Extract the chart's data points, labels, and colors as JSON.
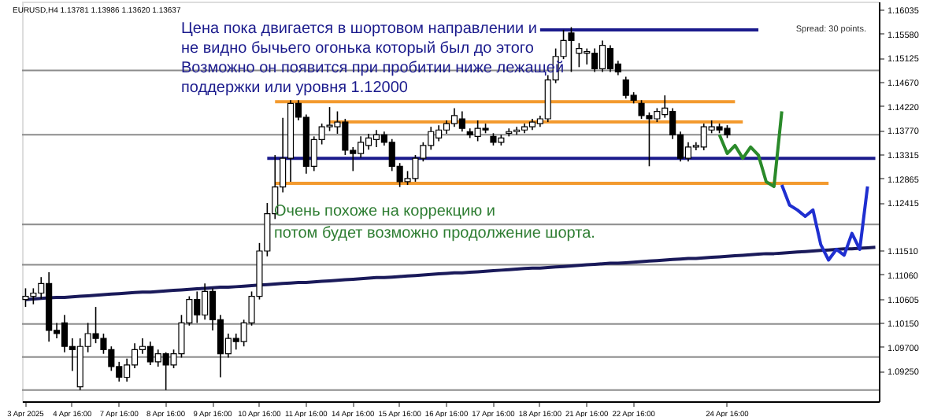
{
  "chart_data": {
    "type": "candlestick",
    "title": "EURUSD,H4 1.13781 1.13986 1.13620 1.13637",
    "categories": [
      "3 Apr 2025",
      null,
      null,
      null,
      null,
      null,
      "4 Apr 16:00",
      null,
      null,
      null,
      null,
      null,
      "7 Apr 16:00",
      null,
      null,
      null,
      null,
      null,
      "8 Apr 16:00",
      null,
      null,
      null,
      null,
      null,
      "9 Apr 16:00",
      null,
      null,
      null,
      null,
      null,
      "10 Apr 16:00",
      null,
      null,
      null,
      null,
      null,
      "11 Apr 16:00",
      null,
      null,
      null,
      null,
      null,
      "14 Apr 16:00",
      null,
      null,
      null,
      null,
      null,
      "15 Apr 16:00",
      null,
      null,
      null,
      null,
      null,
      "16 Apr 16:00",
      null,
      null,
      null,
      null,
      null,
      "17 Apr 16:00",
      null,
      null,
      null,
      null,
      null,
      "18 Apr 16:00",
      null,
      null,
      null,
      null,
      null,
      "21 Apr 16:00",
      null,
      null,
      null,
      null,
      null,
      "22 Apr 16:00",
      null,
      null,
      null,
      null,
      null,
      null,
      null,
      null,
      null,
      null,
      null,
      "24 Apr 16:00",
      null,
      null,
      null,
      null,
      null,
      null,
      null,
      null,
      null,
      null,
      null,
      null,
      null,
      null,
      null,
      null,
      null,
      null,
      null
    ],
    "ohlc": [
      [
        1.1059,
        1.108,
        1.1045,
        1.1065
      ],
      [
        1.1065,
        1.108,
        1.105,
        1.1071
      ],
      [
        1.1071,
        1.1101,
        1.106,
        1.1089
      ],
      [
        1.1089,
        1.111,
        1.098,
        1.1001
      ],
      [
        1.1001,
        1.1015,
        1.0986,
        1.0995
      ],
      [
        1.1015,
        1.103,
        1.096,
        1.0971
      ],
      [
        1.0971,
        1.0986,
        1.0925,
        1.0965
      ],
      [
        1.0895,
        1.0986,
        1.0889,
        1.0971
      ],
      [
        1.0971,
        1.1015,
        1.096,
        1.0995
      ],
      [
        1.0995,
        1.1045,
        1.0977,
        1.0986
      ],
      [
        1.0986,
        1.0995,
        1.0957,
        1.0965
      ],
      [
        1.0965,
        1.0971,
        1.0925,
        1.0933
      ],
      [
        1.0933,
        1.0942,
        1.0905,
        1.0913
      ],
      [
        1.0913,
        1.0948,
        1.0905,
        1.0936
      ],
      [
        1.0936,
        1.0977,
        1.093,
        1.0965
      ],
      [
        1.0965,
        1.0986,
        1.0957,
        1.0971
      ],
      [
        1.0971,
        1.098,
        1.0936,
        1.0942
      ],
      [
        1.0942,
        1.0965,
        1.0933,
        1.0957
      ],
      [
        1.0957,
        1.096,
        1.0889,
        1.0936
      ],
      [
        1.0936,
        1.0965,
        1.093,
        1.0957
      ],
      [
        1.0957,
        1.103,
        1.095,
        1.1015
      ],
      [
        1.1015,
        1.1065,
        1.101,
        1.1059
      ],
      [
        1.1059,
        1.1074,
        1.1015,
        1.103
      ],
      [
        1.103,
        1.1089,
        1.1021,
        1.1074
      ],
      [
        1.1074,
        1.108,
        1.1001,
        1.1021
      ],
      [
        1.1021,
        1.103,
        1.0913,
        1.0957
      ],
      [
        1.0957,
        1.0995,
        1.095,
        1.0986
      ],
      [
        1.0986,
        1.0995,
        1.0965,
        1.098
      ],
      [
        1.098,
        1.1021,
        1.0971,
        1.1015
      ],
      [
        1.1015,
        1.1074,
        1.101,
        1.1065
      ],
      [
        1.1065,
        1.1165,
        1.1059,
        1.115
      ],
      [
        1.115,
        1.124,
        1.114,
        1.122
      ],
      [
        1.122,
        1.133,
        1.121,
        1.127
      ],
      [
        1.127,
        1.14,
        1.126,
        1.1324
      ],
      [
        1.1324,
        1.1433,
        1.128,
        1.1427
      ],
      [
        1.1427,
        1.1433,
        1.1395,
        1.1401
      ],
      [
        1.1401,
        1.1406,
        1.1295,
        1.1309
      ],
      [
        1.1309,
        1.1365,
        1.13,
        1.1359
      ],
      [
        1.1359,
        1.1389,
        1.135,
        1.1383
      ],
      [
        1.1383,
        1.142,
        1.1375,
        1.1386
      ],
      [
        1.1383,
        1.1412,
        1.137,
        1.1392
      ],
      [
        1.1392,
        1.1398,
        1.133,
        1.1339
      ],
      [
        1.1339,
        1.1345,
        1.13,
        1.1333
      ],
      [
        1.1333,
        1.1365,
        1.1325,
        1.1354
      ],
      [
        1.1348,
        1.137,
        1.134,
        1.1362
      ],
      [
        1.1359,
        1.1377,
        1.1345,
        1.1368
      ],
      [
        1.1368,
        1.1374,
        1.1348,
        1.1354
      ],
      [
        1.1354,
        1.136,
        1.13,
        1.1309
      ],
      [
        1.1309,
        1.1315,
        1.127,
        1.128
      ],
      [
        1.128,
        1.13,
        1.1274,
        1.1286
      ],
      [
        1.1286,
        1.133,
        1.128,
        1.1324
      ],
      [
        1.1324,
        1.1354,
        1.1318,
        1.1348
      ],
      [
        1.1348,
        1.1383,
        1.134,
        1.1374
      ],
      [
        1.1362,
        1.1386,
        1.1356,
        1.1377
      ],
      [
        1.1377,
        1.1395,
        1.137,
        1.1389
      ],
      [
        1.1389,
        1.1418,
        1.1383,
        1.1404
      ],
      [
        1.1398,
        1.1412,
        1.1374,
        1.138
      ],
      [
        1.1374,
        1.138,
        1.1362,
        1.1368
      ],
      [
        1.1365,
        1.1395,
        1.1356,
        1.138
      ],
      [
        1.138,
        1.1389,
        1.1371,
        1.1377
      ],
      [
        1.1365,
        1.1371,
        1.1348,
        1.1354
      ],
      [
        1.1354,
        1.1368,
        1.1348,
        1.1362
      ],
      [
        1.1371,
        1.138,
        1.1365,
        1.1374
      ],
      [
        1.1374,
        1.1383,
        1.1368,
        1.1377
      ],
      [
        1.1377,
        1.1389,
        1.1371,
        1.1383
      ],
      [
        1.1383,
        1.1398,
        1.1377,
        1.1392
      ],
      [
        1.1389,
        1.1404,
        1.1383,
        1.1398
      ],
      [
        1.1398,
        1.148,
        1.1392,
        1.1471
      ],
      [
        1.1471,
        1.153,
        1.1465,
        1.1515
      ],
      [
        1.1515,
        1.1565,
        1.151,
        1.1545
      ],
      [
        1.1559,
        1.157,
        1.1486,
        1.1545
      ],
      [
        1.1521,
        1.154,
        1.1495,
        1.153
      ],
      [
        1.1521,
        1.153,
        1.15,
        1.1524
      ],
      [
        1.1521,
        1.153,
        1.1486,
        1.1492
      ],
      [
        1.1492,
        1.1545,
        1.1486,
        1.1536
      ],
      [
        1.153,
        1.1536,
        1.1486,
        1.1492
      ],
      [
        1.1501,
        1.1507,
        1.148,
        1.1486
      ],
      [
        1.1471,
        1.1477,
        1.1436,
        1.1442
      ],
      [
        1.1442,
        1.1448,
        1.1427,
        1.1433
      ],
      [
        1.1427,
        1.1433,
        1.1398,
        1.1404
      ],
      [
        1.1404,
        1.141,
        1.1309,
        1.1398
      ],
      [
        1.1398,
        1.1418,
        1.1392,
        1.1412
      ],
      [
        1.1406,
        1.1442,
        1.14,
        1.1418
      ],
      [
        1.1412,
        1.1418,
        1.136,
        1.1368
      ],
      [
        1.1368,
        1.1374,
        1.1318,
        1.1324
      ],
      [
        1.1324,
        1.1354,
        1.1318,
        1.1345
      ],
      [
        1.1345,
        1.1354,
        1.1339,
        1.1348
      ],
      [
        1.1345,
        1.1389,
        1.1339,
        1.1383
      ],
      [
        1.1377,
        1.1395,
        1.1371,
        1.1383
      ],
      [
        1.1383,
        1.1389,
        1.1371,
        1.1377
      ],
      [
        1.138,
        1.1386,
        1.1362,
        1.1368
      ],
      null,
      null,
      null,
      null,
      null,
      null,
      null,
      null,
      null,
      null,
      null,
      null,
      null,
      null,
      null,
      null,
      null,
      null,
      null
    ],
    "series": [
      {
        "type": "line",
        "color": "#f39a2e",
        "values": [
          null,
          null,
          null,
          null,
          null,
          null,
          null,
          null,
          null,
          null,
          null,
          null,
          null,
          null,
          null,
          null,
          null,
          null,
          null,
          null,
          null,
          null,
          null,
          null,
          null,
          null,
          null,
          null,
          null,
          null,
          null,
          null,
          1.143,
          1.143,
          1.143,
          1.143,
          1.143,
          1.143,
          1.143,
          1.143,
          1.143,
          1.143,
          1.143,
          1.143,
          1.143,
          1.143,
          1.143,
          1.143,
          1.143,
          1.143,
          1.143,
          1.143,
          1.143,
          1.143,
          1.143,
          1.143,
          1.143,
          1.143,
          1.143,
          1.143,
          1.143,
          1.143,
          1.143,
          1.143,
          1.143,
          1.143,
          1.143,
          1.143,
          1.143,
          1.143,
          1.143,
          1.143,
          1.143,
          1.143,
          1.143,
          1.143,
          1.143,
          1.143,
          1.143,
          1.143,
          1.143,
          1.143,
          1.143,
          1.143,
          1.143,
          1.143,
          1.143,
          1.143,
          1.143,
          1.143,
          1.143,
          1.143,
          null,
          null,
          null,
          null,
          null,
          null,
          null,
          null,
          null,
          null,
          null,
          null,
          null,
          null,
          null,
          null,
          null,
          null
        ]
      },
      {
        "type": "line",
        "color": "#f39a2e",
        "values": [
          null,
          null,
          null,
          null,
          null,
          null,
          null,
          null,
          null,
          null,
          null,
          null,
          null,
          null,
          null,
          null,
          null,
          null,
          null,
          null,
          null,
          null,
          null,
          null,
          null,
          null,
          null,
          null,
          null,
          null,
          null,
          null,
          null,
          null,
          null,
          null,
          null,
          null,
          null,
          1.1392,
          1.1392,
          1.1392,
          1.1392,
          1.1392,
          1.1392,
          1.1392,
          1.1392,
          1.1392,
          1.1392,
          1.1392,
          1.1392,
          1.1392,
          1.1392,
          1.1392,
          1.1392,
          1.1392,
          1.1392,
          1.1392,
          1.1392,
          1.1392,
          1.1392,
          1.1392,
          1.1392,
          1.1392,
          1.1392,
          1.1392,
          1.1392,
          1.1392,
          1.1392,
          1.1392,
          1.1392,
          1.1392,
          1.1392,
          1.1392,
          1.1392,
          1.1392,
          1.1392,
          1.1392,
          1.1392,
          1.1392,
          1.1392,
          1.1392,
          1.1392,
          1.1392,
          1.1392,
          1.1392,
          1.1392,
          1.1392,
          1.1392,
          1.1392,
          1.1392,
          1.1392,
          1.1392,
          null,
          null,
          null,
          null,
          null,
          null,
          null,
          null,
          null,
          null,
          null,
          null,
          null,
          null,
          null,
          null,
          null
        ]
      },
      {
        "type": "line",
        "color": "#f39a2e",
        "values": [
          null,
          null,
          null,
          null,
          null,
          null,
          null,
          null,
          null,
          null,
          null,
          null,
          null,
          null,
          null,
          null,
          null,
          null,
          null,
          null,
          null,
          null,
          null,
          null,
          null,
          null,
          null,
          null,
          null,
          null,
          null,
          null,
          1.1277,
          1.1277,
          1.1277,
          1.1277,
          1.1277,
          1.1277,
          1.1277,
          1.1277,
          1.1277,
          1.1277,
          1.1277,
          1.1277,
          1.1277,
          1.1277,
          1.1277,
          1.1277,
          1.1277,
          1.1277,
          1.1277,
          1.1277,
          1.1277,
          1.1277,
          1.1277,
          1.1277,
          1.1277,
          1.1277,
          1.1277,
          1.1277,
          1.1277,
          1.1277,
          1.1277,
          1.1277,
          1.1277,
          1.1277,
          1.1277,
          1.1277,
          1.1277,
          1.1277,
          1.1277,
          1.1277,
          1.1277,
          1.1277,
          1.1277,
          1.1277,
          1.1277,
          1.1277,
          1.1277,
          1.1277,
          1.1277,
          1.1277,
          1.1277,
          1.1277,
          1.1277,
          1.1277,
          1.1277,
          1.1277,
          1.1277,
          1.1277,
          1.1277,
          1.1277,
          1.1277,
          1.1277,
          1.1277,
          1.1277,
          1.1277,
          1.1277,
          1.1277,
          1.1277,
          1.1277,
          1.1277,
          1.1277,
          1.1277,
          null,
          null,
          null,
          null,
          null,
          null
        ]
      },
      {
        "type": "line",
        "color": "#1a1a8c",
        "values": [
          null,
          null,
          null,
          null,
          null,
          null,
          null,
          null,
          null,
          null,
          null,
          null,
          null,
          null,
          null,
          null,
          null,
          null,
          null,
          null,
          null,
          null,
          null,
          null,
          null,
          null,
          null,
          null,
          null,
          null,
          null,
          null,
          null,
          null,
          null,
          null,
          null,
          null,
          null,
          null,
          null,
          null,
          null,
          null,
          null,
          null,
          null,
          null,
          null,
          null,
          null,
          null,
          null,
          null,
          null,
          null,
          null,
          null,
          null,
          null,
          null,
          null,
          null,
          null,
          null,
          null,
          1.1565,
          1.1565,
          1.1565,
          1.1565,
          1.1565,
          1.1565,
          1.1565,
          1.1565,
          1.1565,
          1.1565,
          1.1565,
          1.1565,
          1.1565,
          1.1565,
          1.1565,
          1.1565,
          1.1565,
          1.1565,
          1.1565,
          1.1565,
          1.1565,
          1.1565,
          1.1565,
          1.1565,
          1.1565,
          1.1565,
          1.1565,
          1.1565,
          1.1565,
          null,
          null,
          null,
          null,
          null,
          null,
          null,
          null,
          null,
          null,
          null,
          null,
          null,
          null,
          null
        ]
      },
      {
        "type": "line",
        "color": "#1a1a8c",
        "values": [
          null,
          null,
          null,
          null,
          null,
          null,
          null,
          null,
          null,
          null,
          null,
          null,
          null,
          null,
          null,
          null,
          null,
          null,
          null,
          null,
          null,
          null,
          null,
          null,
          null,
          null,
          null,
          null,
          null,
          null,
          null,
          1.1324,
          1.1324,
          1.1324,
          1.1324,
          1.1324,
          1.1324,
          1.1324,
          1.1324,
          1.1324,
          1.1324,
          1.1324,
          1.1324,
          1.1324,
          1.1324,
          1.1324,
          1.1324,
          1.1324,
          1.1324,
          1.1324,
          1.1324,
          1.1324,
          1.1324,
          1.1324,
          1.1324,
          1.1324,
          1.1324,
          1.1324,
          1.1324,
          1.1324,
          1.1324,
          1.1324,
          1.1324,
          1.1324,
          1.1324,
          1.1324,
          1.1324,
          1.1324,
          1.1324,
          1.1324,
          1.1324,
          1.1324,
          1.1324,
          1.1324,
          1.1324,
          1.1324,
          1.1324,
          1.1324,
          1.1324,
          1.1324,
          1.1324,
          1.1324,
          1.1324,
          1.1324,
          1.1324,
          1.1324,
          1.1324,
          1.1324,
          1.1324,
          1.1324,
          1.1324,
          1.1324,
          1.1324,
          1.1324,
          1.1324,
          1.1324,
          1.1324,
          1.1324,
          1.1324,
          1.1324,
          1.1324,
          1.1324,
          1.1324,
          1.1324,
          1.1324,
          1.1324,
          1.1324,
          1.1324,
          1.1324,
          1.1324
        ]
      },
      {
        "type": "line",
        "color": "#1a1a5a",
        "values": [
          1.1059,
          1.106,
          1.1061,
          1.1062,
          1.1063,
          1.1063,
          1.1064,
          1.1065,
          1.1066,
          1.1067,
          1.1068,
          1.1069,
          1.107,
          1.1071,
          1.1072,
          1.1073,
          1.1073,
          1.1074,
          1.1075,
          1.1076,
          1.1077,
          1.1078,
          1.1079,
          1.108,
          1.1081,
          1.1082,
          1.1082,
          1.1083,
          1.1084,
          1.1085,
          1.1086,
          1.1087,
          1.1088,
          1.1089,
          1.109,
          1.1091,
          1.1091,
          1.1092,
          1.1093,
          1.1094,
          1.1095,
          1.1096,
          1.1097,
          1.1098,
          1.1099,
          1.11,
          1.11,
          1.1101,
          1.1102,
          1.1103,
          1.1104,
          1.1105,
          1.1106,
          1.1107,
          1.1108,
          1.1109,
          1.1109,
          1.111,
          1.1111,
          1.1112,
          1.1113,
          1.1114,
          1.1115,
          1.1116,
          1.1117,
          1.1118,
          1.1118,
          1.1119,
          1.112,
          1.1121,
          1.1122,
          1.1123,
          1.1124,
          1.1125,
          1.1126,
          1.1127,
          1.1127,
          1.1128,
          1.1129,
          1.113,
          1.1131,
          1.1132,
          1.1133,
          1.1134,
          1.1135,
          1.1136,
          1.1136,
          1.1137,
          1.1138,
          1.1139,
          1.114,
          1.1141,
          1.1142,
          1.1143,
          1.1144,
          1.1145,
          1.1145,
          1.1146,
          1.1147,
          1.1148,
          1.1149,
          1.115,
          1.1151,
          1.1152,
          1.1153,
          1.1154,
          1.1154,
          1.1155,
          1.1156,
          1.1157
        ]
      },
      {
        "type": "line",
        "color": "#2a8a2a",
        "values": [
          null,
          null,
          null,
          null,
          null,
          null,
          null,
          null,
          null,
          null,
          null,
          null,
          null,
          null,
          null,
          null,
          null,
          null,
          null,
          null,
          null,
          null,
          null,
          null,
          null,
          null,
          null,
          null,
          null,
          null,
          null,
          null,
          null,
          null,
          null,
          null,
          null,
          null,
          null,
          null,
          null,
          null,
          null,
          null,
          null,
          null,
          null,
          null,
          null,
          null,
          null,
          null,
          null,
          null,
          null,
          null,
          null,
          null,
          null,
          null,
          null,
          null,
          null,
          null,
          null,
          null,
          null,
          null,
          null,
          null,
          null,
          null,
          null,
          null,
          null,
          null,
          null,
          null,
          null,
          null,
          null,
          null,
          null,
          null,
          null,
          null,
          null,
          null,
          null,
          1.1368,
          1.1333,
          1.1348,
          1.1324,
          1.1345,
          1.133,
          1.128,
          1.1271,
          1.1412,
          null,
          null,
          null,
          null,
          null,
          null,
          null,
          null,
          null,
          null,
          null,
          null
        ]
      },
      {
        "type": "line",
        "color": "#1f2fd0",
        "values": [
          null,
          null,
          null,
          null,
          null,
          null,
          null,
          null,
          null,
          null,
          null,
          null,
          null,
          null,
          null,
          null,
          null,
          null,
          null,
          null,
          null,
          null,
          null,
          null,
          null,
          null,
          null,
          null,
          null,
          null,
          null,
          null,
          null,
          null,
          null,
          null,
          null,
          null,
          null,
          null,
          null,
          null,
          null,
          null,
          null,
          null,
          null,
          null,
          null,
          null,
          null,
          null,
          null,
          null,
          null,
          null,
          null,
          null,
          null,
          null,
          null,
          null,
          null,
          null,
          null,
          null,
          null,
          null,
          null,
          null,
          null,
          null,
          null,
          null,
          null,
          null,
          null,
          null,
          null,
          null,
          null,
          null,
          null,
          null,
          null,
          null,
          null,
          null,
          null,
          null,
          null,
          null,
          null,
          null,
          null,
          null,
          null,
          1.1274,
          1.1236,
          1.1227,
          1.1215,
          1.1227,
          1.1162,
          1.1133,
          1.1153,
          1.1142,
          1.1183,
          1.1153,
          1.1271,
          null
        ]
      }
    ],
    "ref_lines": [
      {
        "axis": "y",
        "value": 1.1489,
        "color": "#8c8c8c"
      },
      {
        "axis": "y",
        "value": 1.1368,
        "color": "#8c8c8c"
      },
      {
        "axis": "y",
        "value": 1.12,
        "color": "#8c8c8c"
      },
      {
        "axis": "y",
        "value": 1.1124,
        "color": "#8c8c8c"
      },
      {
        "axis": "y",
        "value": 1.1013,
        "color": "#8c8c8c"
      },
      {
        "axis": "y",
        "value": 1.0951,
        "color": "#8c8c8c"
      },
      {
        "axis": "y",
        "value": 1.0889,
        "color": "#8c8c8c"
      }
    ],
    "ylim": [
      1.0868,
      1.1618
    ],
    "yticks": [
      1.16035,
      {
        "value": 1.1558,
        "label": "1.15580"
      },
      1.15125,
      {
        "value": 1.1467,
        "label": "1.14670"
      },
      {
        "value": 1.1422,
        "label": "1.14220"
      },
      {
        "value": 1.1377,
        "label": "1.13770"
      },
      1.13315,
      1.12865,
      1.12415,
      {
        "value": 1.1151,
        "label": "1.11510"
      },
      {
        "value": 1.1106,
        "label": "1.11060"
      },
      1.10605,
      {
        "value": 1.1015,
        "label": "1.10150"
      },
      {
        "value": 1.097,
        "label": "1.09700"
      },
      {
        "value": 1.0925,
        "label": "1.09250"
      }
    ],
    "grid": false,
    "annotations": [
      "Цена пока двигается в шортовом направлении и\nне видно бычьего огонька который был до этого\nВозможно он появится при пробитии ниже лежащей\nподдержки или уровня 1.12000",
      "Очень похоже на коррекцию и\nпотом будет возможно продолжение шорта.",
      "Spread: 30 points."
    ]
  }
}
